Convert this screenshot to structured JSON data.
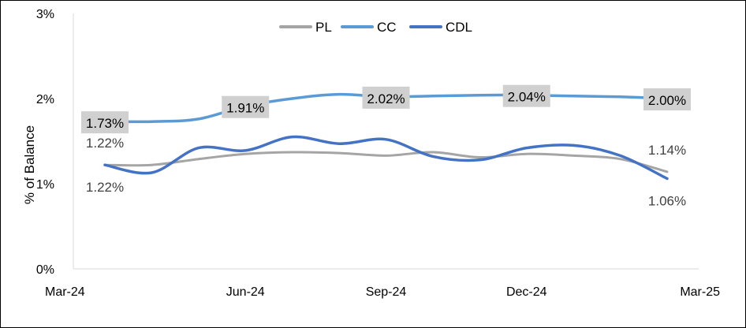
{
  "chart_data": {
    "type": "line",
    "title": "",
    "xlabel": "",
    "ylabel": "% of Balance",
    "x": [
      "Mar-24",
      "Apr-24",
      "May-24",
      "Jun-24",
      "Jul-24",
      "Aug-24",
      "Sep-24",
      "Oct-24",
      "Nov-24",
      "Dec-24",
      "Jan-25",
      "Feb-25",
      "Mar-25"
    ],
    "x_tick_labels": [
      "Mar-24",
      "Jun-24",
      "Sep-24",
      "Dec-24",
      "Mar-25"
    ],
    "y_ticks": [
      "0%",
      "1%",
      "2%",
      "3%"
    ],
    "ylim": [
      0,
      3
    ],
    "grid": false,
    "legend_position": "top-center",
    "series": [
      {
        "name": "PL",
        "color": "#a5a5a5",
        "values": [
          1.22,
          1.22,
          1.29,
          1.35,
          1.37,
          1.36,
          1.33,
          1.37,
          1.31,
          1.35,
          1.33,
          1.29,
          1.14
        ],
        "labels": [
          {
            "index": 0,
            "text": "1.22%"
          },
          {
            "index": 12,
            "text": "1.14%"
          }
        ]
      },
      {
        "name": "CC",
        "color": "#5b9bd5",
        "values": [
          1.73,
          1.73,
          1.76,
          1.91,
          2.0,
          2.05,
          2.02,
          2.03,
          2.04,
          2.04,
          2.03,
          2.02,
          2.0
        ],
        "labels": [
          {
            "index": 0,
            "text": "1.73%"
          },
          {
            "index": 3,
            "text": "1.91%"
          },
          {
            "index": 6,
            "text": "2.02%"
          },
          {
            "index": 9,
            "text": "2.04%"
          },
          {
            "index": 12,
            "text": "2.00%"
          }
        ]
      },
      {
        "name": "CDL",
        "color": "#4472c4",
        "values": [
          1.22,
          1.13,
          1.42,
          1.39,
          1.55,
          1.47,
          1.52,
          1.32,
          1.28,
          1.42,
          1.45,
          1.33,
          1.06
        ],
        "labels": [
          {
            "index": 0,
            "text": "1.22%"
          },
          {
            "index": 12,
            "text": "1.06%"
          }
        ]
      }
    ]
  }
}
